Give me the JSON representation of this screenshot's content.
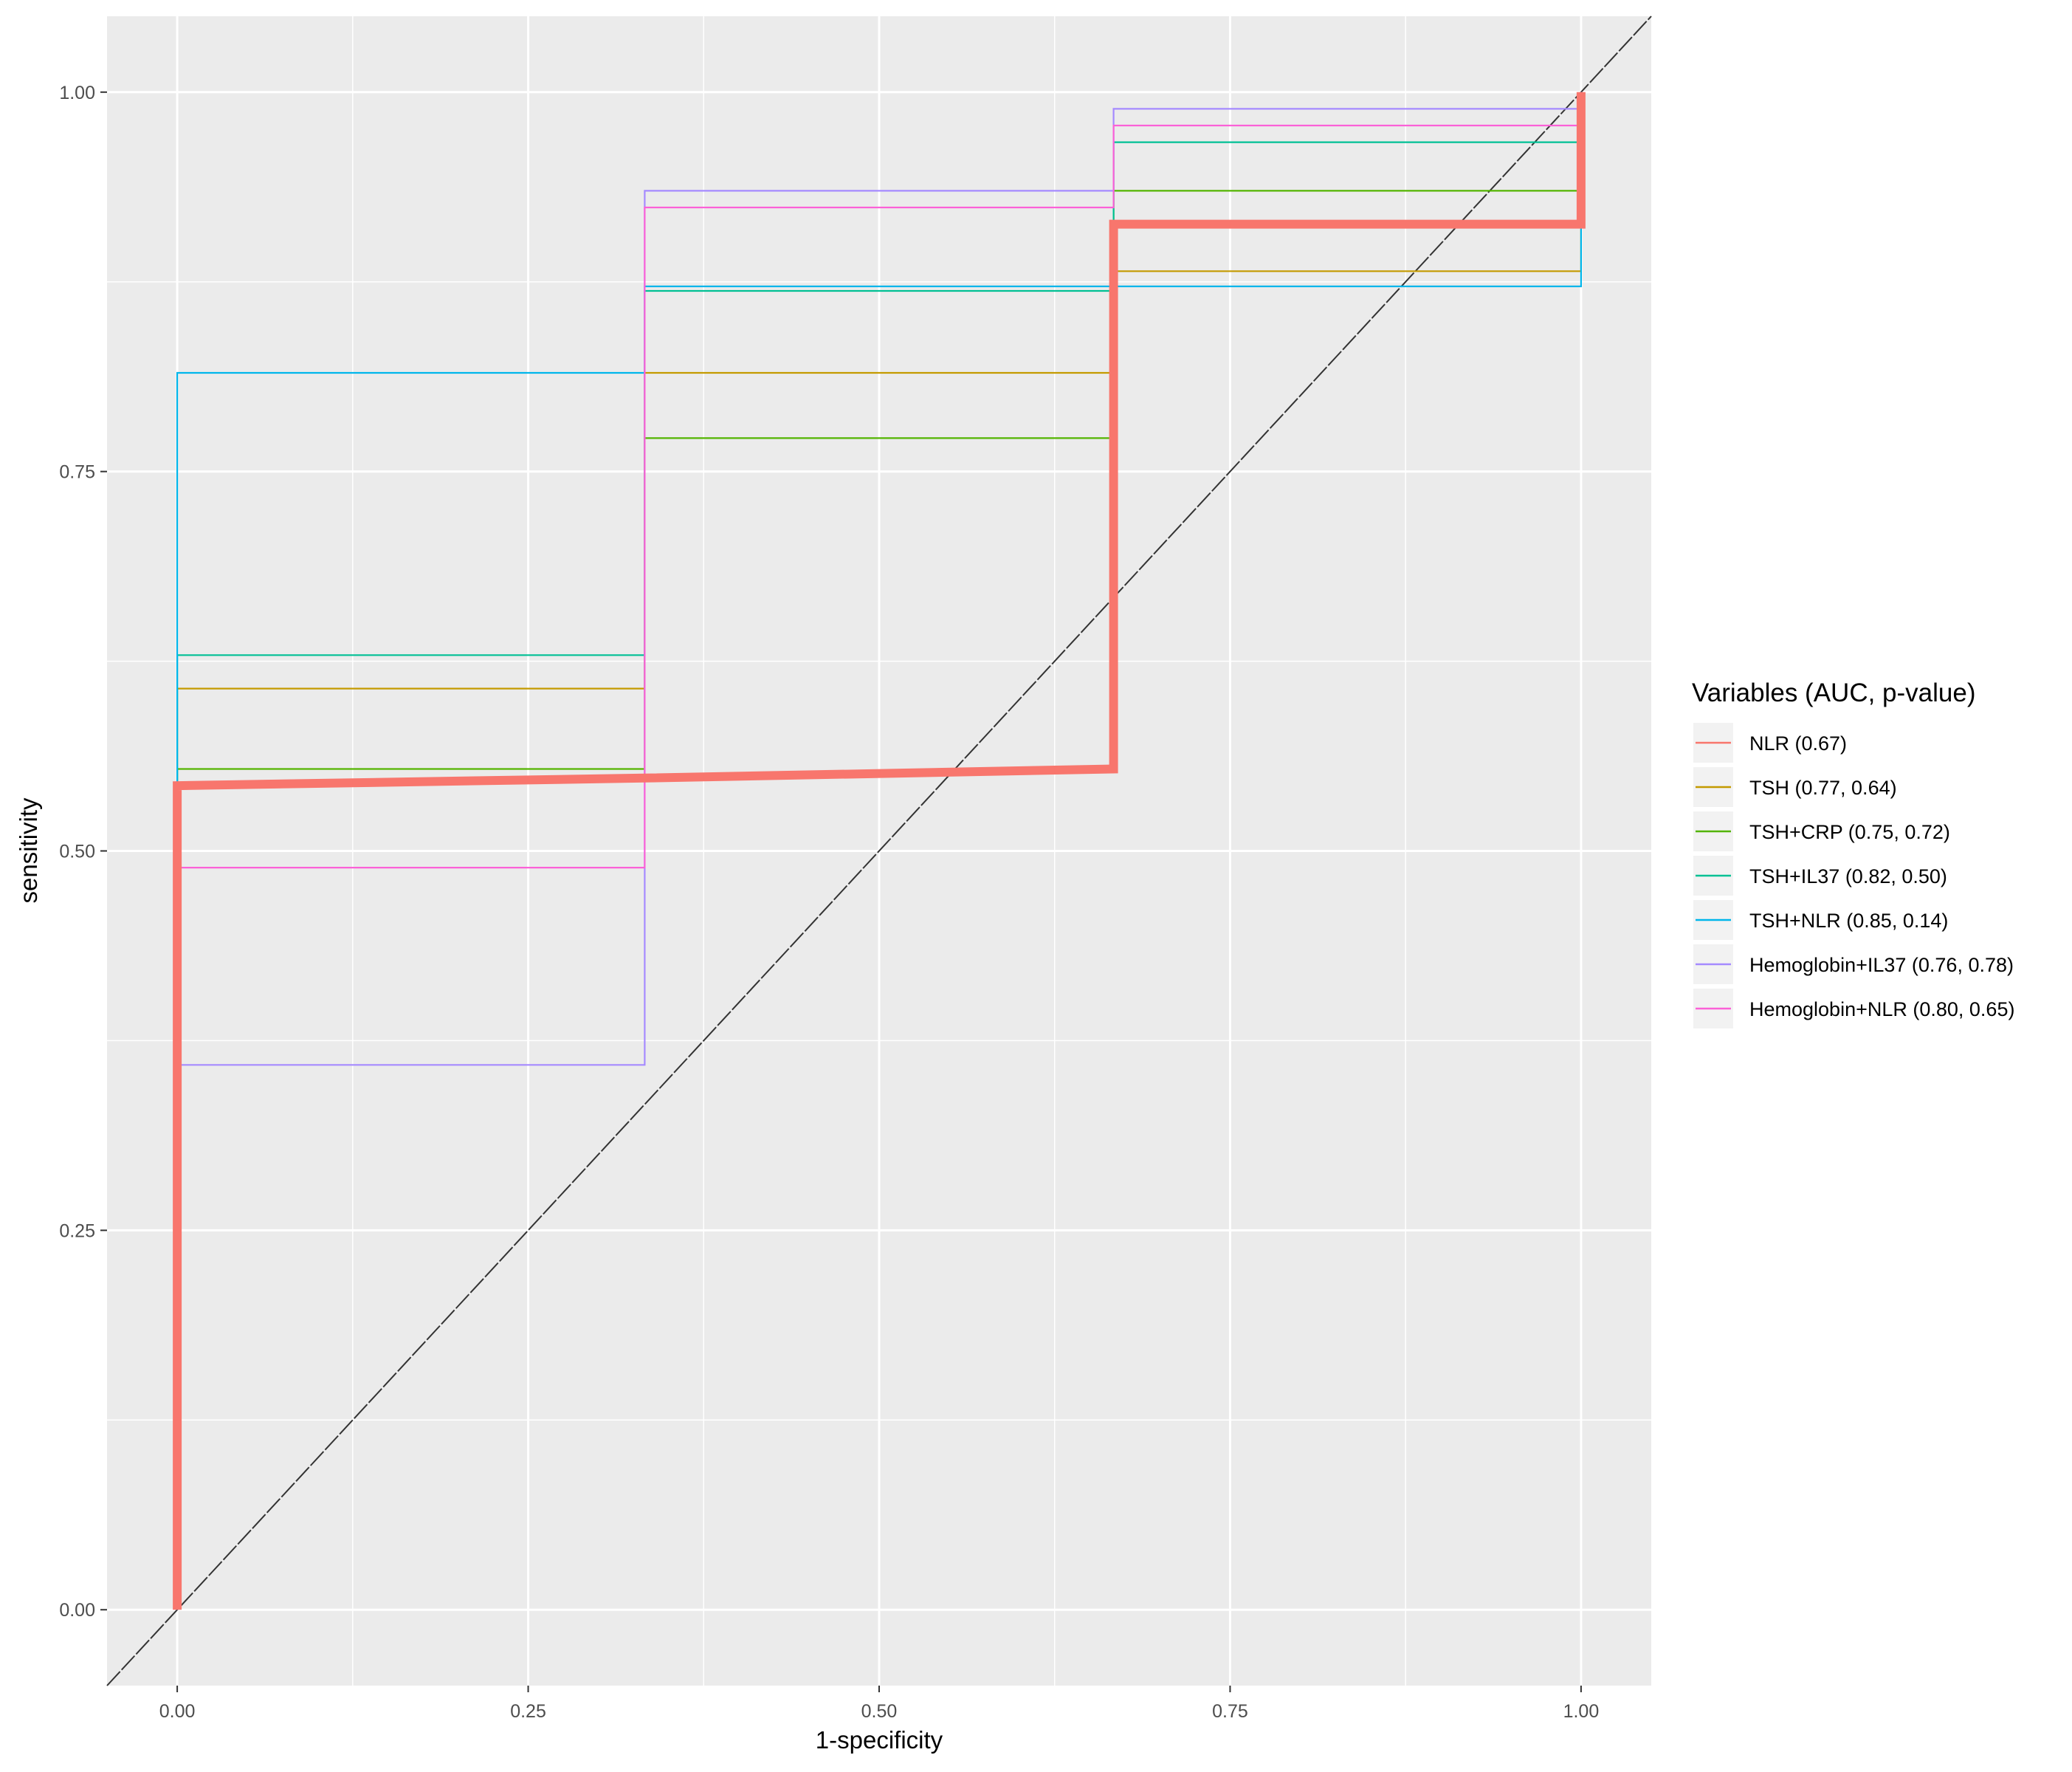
{
  "chart_data": {
    "type": "line",
    "title": "",
    "xlabel": "1-specificity",
    "ylabel": "sensitivity",
    "xlim": [
      -0.05,
      1.05
    ],
    "ylim": [
      -0.05,
      1.05
    ],
    "x_ticks": [
      0.0,
      0.25,
      0.5,
      0.75,
      1.0
    ],
    "x_tick_labels": [
      "0.00",
      "0.25",
      "0.50",
      "0.75",
      "1.00"
    ],
    "y_ticks": [
      0.0,
      0.25,
      0.5,
      0.75,
      1.0
    ],
    "y_tick_labels": [
      "0.00",
      "0.25",
      "0.50",
      "0.75",
      "1.00"
    ],
    "grid": true,
    "reference_line": {
      "x": [
        -0.05,
        1.05
      ],
      "y": [
        -0.05,
        1.05
      ],
      "color": "#333333",
      "dash": true
    },
    "legend": {
      "title": "Variables (AUC, p-value)",
      "position": "right"
    },
    "series": [
      {
        "name": "TSH (0.77, 0.64)",
        "color": "#C49A00",
        "x": [
          0,
          0,
          0.333,
          0.333,
          0.667,
          0.667,
          1,
          1
        ],
        "y": [
          0,
          0.607,
          0.607,
          0.815,
          0.815,
          0.882,
          0.882,
          1
        ]
      },
      {
        "name": "TSH+CRP (0.75, 0.72)",
        "color": "#53B400",
        "x": [
          0,
          0,
          0.333,
          0.333,
          0.667,
          0.667,
          1,
          1
        ],
        "y": [
          0,
          0.554,
          0.554,
          0.772,
          0.772,
          0.935,
          0.935,
          1
        ]
      },
      {
        "name": "TSH+IL37 (0.82, 0.50)",
        "color": "#00C094",
        "x": [
          0,
          0,
          0.333,
          0.333,
          0.667,
          0.667,
          1,
          1
        ],
        "y": [
          0,
          0.629,
          0.629,
          0.869,
          0.869,
          0.967,
          0.967,
          1
        ]
      },
      {
        "name": "TSH+NLR (0.85, 0.14)",
        "color": "#00B6EB",
        "x": [
          0,
          0,
          0.333,
          0.333,
          0.667,
          0.667,
          1,
          1
        ],
        "y": [
          0,
          0.815,
          0.815,
          0.872,
          0.872,
          0.872,
          0.872,
          1
        ]
      },
      {
        "name": "Hemoglobin+IL37 (0.76, 0.78)",
        "color": "#A58AFF",
        "x": [
          0,
          0,
          0.333,
          0.333,
          0.667,
          0.667,
          1,
          1
        ],
        "y": [
          0,
          0.359,
          0.359,
          0.935,
          0.935,
          0.989,
          0.989,
          1
        ]
      },
      {
        "name": "Hemoglobin+NLR (0.80, 0.65)",
        "color": "#FB61D7",
        "x": [
          0,
          0,
          0.333,
          0.333,
          0.667,
          0.667,
          1,
          1
        ],
        "y": [
          0,
          0.489,
          0.489,
          0.924,
          0.924,
          0.978,
          0.978,
          1
        ]
      },
      {
        "name": "NLR (0.67)",
        "color": "#F8766D",
        "emphasis": true,
        "x": [
          0,
          0,
          0.333,
          0.667,
          0.667,
          1,
          1
        ],
        "y": [
          0,
          0.543,
          0.548,
          0.554,
          0.913,
          0.913,
          1
        ]
      }
    ],
    "legend_order": [
      "NLR (0.67)",
      "TSH (0.77, 0.64)",
      "TSH+CRP (0.75, 0.72)",
      "TSH+IL37 (0.82, 0.50)",
      "TSH+NLR (0.85, 0.14)",
      "Hemoglobin+IL37 (0.76, 0.78)",
      "Hemoglobin+NLR (0.80, 0.65)"
    ]
  }
}
